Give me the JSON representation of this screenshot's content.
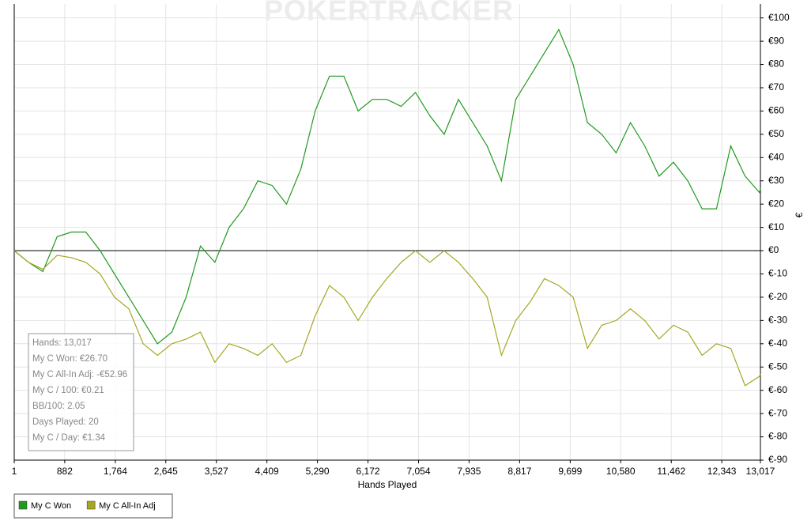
{
  "chart_data": {
    "type": "line",
    "watermark": "POKERTRACKER",
    "x_label": "Hands Played",
    "y_label": "€",
    "x": [
      1,
      250,
      500,
      750,
      1000,
      1250,
      1500,
      1750,
      2000,
      2250,
      2500,
      2750,
      3000,
      3250,
      3500,
      3750,
      4000,
      4250,
      4500,
      4750,
      5000,
      5250,
      5500,
      5750,
      6000,
      6250,
      6500,
      6750,
      7000,
      7250,
      7500,
      7750,
      8000,
      8250,
      8500,
      8750,
      9000,
      9250,
      9500,
      9750,
      10000,
      10250,
      10500,
      10750,
      11000,
      11250,
      11500,
      11750,
      12000,
      12250,
      12500,
      12750,
      13000,
      13017
    ],
    "series": [
      {
        "name": "My C Won",
        "color": "#1f9a1f",
        "values": [
          0,
          -5,
          -9,
          6,
          8,
          8,
          0,
          -10,
          -20,
          -30,
          -40,
          -35,
          -20,
          2,
          -5,
          10,
          18,
          30,
          28,
          20,
          35,
          60,
          75,
          75,
          60,
          65,
          65,
          62,
          68,
          58,
          50,
          65,
          55,
          45,
          30,
          65,
          75,
          85,
          95,
          80,
          55,
          50,
          42,
          55,
          45,
          32,
          38,
          30,
          18,
          18,
          45,
          32,
          25,
          26.7
        ]
      },
      {
        "name": "My C All-In Adj",
        "color": "#a6a622",
        "values": [
          0,
          -5,
          -8,
          -2,
          -3,
          -5,
          -10,
          -20,
          -25,
          -40,
          -45,
          -40,
          -38,
          -35,
          -48,
          -40,
          -42,
          -45,
          -40,
          -48,
          -45,
          -28,
          -15,
          -20,
          -30,
          -20,
          -12,
          -5,
          0,
          -5,
          0,
          -5,
          -12,
          -20,
          -45,
          -30,
          -22,
          -12,
          -15,
          -20,
          -42,
          -32,
          -30,
          -25,
          -30,
          -38,
          -32,
          -35,
          -45,
          -40,
          -42,
          -58,
          -54,
          -52.96
        ]
      }
    ],
    "xlim": [
      1,
      13017
    ],
    "xticks": [
      1,
      882,
      {
        "value": 1764,
        "label": "1,764"
      },
      {
        "value": 2645,
        "label": "2,645"
      },
      {
        "value": 3527,
        "label": "3,527"
      },
      {
        "value": 4409,
        "label": "4,409"
      },
      {
        "value": 5290,
        "label": "5,290"
      },
      {
        "value": 6172,
        "label": "6,172"
      },
      {
        "value": 7054,
        "label": "7,054"
      },
      {
        "value": 7935,
        "label": "7,935"
      },
      {
        "value": 8817,
        "label": "8,817"
      },
      {
        "value": 9699,
        "label": "9,699"
      },
      {
        "value": 10580,
        "label": "10,580"
      },
      {
        "value": 11462,
        "label": "11,462"
      },
      {
        "value": 12343,
        "label": "12,343"
      },
      {
        "value": 13017,
        "label": "13,017"
      }
    ],
    "ylim": [
      -90,
      106
    ],
    "yticks": [
      {
        "value": 100,
        "label": "€100"
      },
      {
        "value": 90,
        "label": "€90"
      },
      {
        "value": 80,
        "label": "€80"
      },
      {
        "value": 70,
        "label": "€70"
      },
      {
        "value": 60,
        "label": "€60"
      },
      {
        "value": 50,
        "label": "€50"
      },
      {
        "value": 40,
        "label": "€40"
      },
      {
        "value": 30,
        "label": "€30"
      },
      {
        "value": 20,
        "label": "€20"
      },
      {
        "value": 10,
        "label": "€10"
      },
      {
        "value": 0,
        "label": "€0"
      },
      {
        "value": -10,
        "label": "€-10"
      },
      {
        "value": -20,
        "label": "€-20"
      },
      {
        "value": -30,
        "label": "€-30"
      },
      {
        "value": -40,
        "label": "€-40"
      },
      {
        "value": -50,
        "label": "€-50"
      },
      {
        "value": -60,
        "label": "€-60"
      },
      {
        "value": -70,
        "label": "€-70"
      },
      {
        "value": -80,
        "label": "€-80"
      },
      {
        "value": -90,
        "label": "€-90"
      }
    ],
    "grid": true,
    "legend": "bottom-left",
    "stats_box": [
      "Hands: 13,017",
      "My C Won: €26.70",
      "My C All-In Adj: -€52.96",
      "My C / 100: €0.21",
      "BB/100: 2.05",
      "Days Played: 20",
      "My C / Day: €1.34"
    ]
  }
}
